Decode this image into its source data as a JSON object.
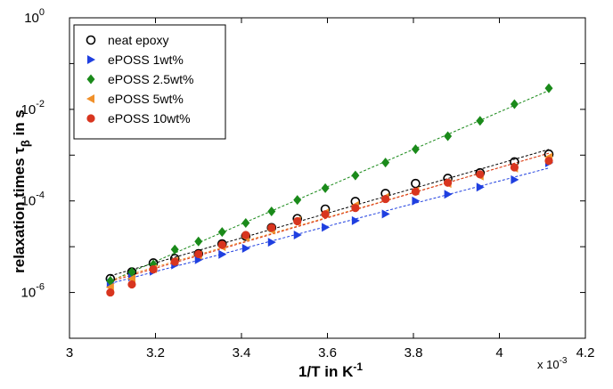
{
  "chart_data": {
    "type": "scatter",
    "xlabel_main": "1/T in K",
    "xlabel_sup": "-1",
    "ylabel_main": "relaxation times  τ",
    "ylabel_sub": "β",
    "ylabel_tail": " in s",
    "x_multiplier": "x 10",
    "x_multiplier_exp": "-3",
    "xlim": [
      3.0,
      4.2
    ],
    "ylim_log10": [
      -7,
      0
    ],
    "yscale": "log",
    "x_ticks": [
      "3",
      "3.2",
      "3.4",
      "3.6",
      "3.8",
      "4",
      "4.2"
    ],
    "y_ticks": [
      {
        "base": "10",
        "exp": "0",
        "log": 0
      },
      {
        "base": "10",
        "exp": "-2",
        "log": -2
      },
      {
        "base": "10",
        "exp": "-4",
        "log": -4
      },
      {
        "base": "10",
        "exp": "-6",
        "log": -6
      }
    ],
    "legend_position": "top-left",
    "x": [
      3.095,
      3.145,
      3.195,
      3.245,
      3.3,
      3.355,
      3.41,
      3.47,
      3.53,
      3.595,
      3.665,
      3.735,
      3.805,
      3.88,
      3.955,
      4.035,
      4.115
    ],
    "series": [
      {
        "name": "neat epoxy",
        "marker": "open-circle",
        "color": "#000000",
        "values": [
          2e-06,
          2.8e-06,
          4.4e-06,
          5.5e-06,
          7e-06,
          1.15e-05,
          1.7e-05,
          2.6e-05,
          4.1e-05,
          6.6e-05,
          9.7e-05,
          0.000145,
          0.00024,
          0.00031,
          0.00041,
          0.00071,
          0.00105
        ]
      },
      {
        "name": "ePOSS 1wt%",
        "marker": "triangle-right",
        "color": "#1f3fe0",
        "values": [
          1.6e-06,
          2.2e-06,
          2.9e-06,
          4e-06,
          5.2e-06,
          6.8e-06,
          9.2e-06,
          1.25e-05,
          1.8e-05,
          2.65e-05,
          3.7e-05,
          5.2e-05,
          0.0001,
          0.00014,
          0.0002,
          0.00029,
          0.00068
        ]
      },
      {
        "name": "ePOSS 2.5wt%",
        "marker": "diamond",
        "color": "#1a8a1a",
        "values": [
          1.8e-06,
          2.8e-06,
          4.1e-06,
          8.7e-06,
          1.3e-05,
          2.1e-05,
          3.3e-05,
          5.9e-05,
          0.000105,
          0.00019,
          0.00036,
          0.00069,
          0.00135,
          0.0026,
          0.0056,
          0.013,
          0.029
        ]
      },
      {
        "name": "ePOSS 5wt%",
        "marker": "triangle-left",
        "color": "#f0902a",
        "values": [
          1.3e-06,
          2e-06,
          3.3e-06,
          4.9e-06,
          6.5e-06,
          1e-05,
          1.6e-05,
          2.3e-05,
          3.7e-05,
          5.5e-05,
          8e-05,
          0.00012,
          0.000165,
          0.00024,
          0.00035,
          0.00052,
          0.0009
        ]
      },
      {
        "name": "ePOSS 10wt%",
        "marker": "filled-circle",
        "color": "#d8351f",
        "values": [
          1e-06,
          1.5e-06,
          3.2e-06,
          4.7e-06,
          6.9e-06,
          1.1e-05,
          1.8e-05,
          2.6e-05,
          3.6e-05,
          5.1e-05,
          7e-05,
          0.00011,
          0.00016,
          0.00025,
          0.00038,
          0.00054,
          0.00075
        ]
      }
    ]
  }
}
